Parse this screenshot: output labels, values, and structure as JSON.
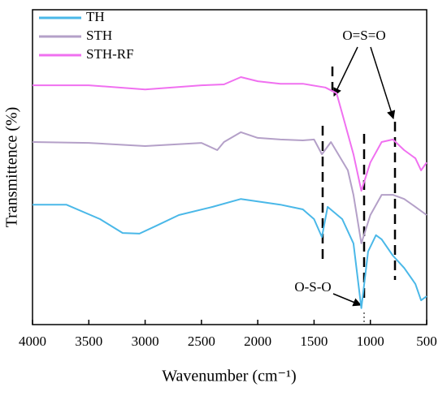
{
  "chart_data": {
    "type": "line",
    "xlabel": "Wavenumber (cm⁻¹)",
    "ylabel": "Transmittence (%)",
    "xlim": [
      4000,
      500
    ],
    "xticks": [
      4000,
      3500,
      3000,
      2500,
      2000,
      1500,
      1000,
      500
    ],
    "ylim": [
      0,
      100
    ],
    "annotations": [
      "O=S=O",
      "O-S-O"
    ],
    "series": [
      {
        "name": "TH",
        "color": "#4ab8e8",
        "x": [
          4000,
          3700,
          3400,
          3200,
          3050,
          2900,
          2700,
          2400,
          2150,
          1800,
          1600,
          1500,
          1430,
          1380,
          1250,
          1150,
          1080,
          1020,
          950,
          900,
          800,
          700,
          600,
          550,
          500
        ],
        "values": [
          38.1,
          38.1,
          33.5,
          29.1,
          28.9,
          31.4,
          34.8,
          37.4,
          39.9,
          38.1,
          36.6,
          33.5,
          27.8,
          37.4,
          33.5,
          25.8,
          5.2,
          23.2,
          28.4,
          27.1,
          21.9,
          18.0,
          12.9,
          7.7,
          9.0
        ]
      },
      {
        "name": "STH",
        "color": "#b4a0c8",
        "x": [
          4000,
          3500,
          3000,
          2500,
          2360,
          2300,
          2150,
          2000,
          1800,
          1600,
          1500,
          1430,
          1350,
          1200,
          1150,
          1080,
          1000,
          900,
          800,
          700,
          600,
          500
        ],
        "values": [
          58.0,
          57.7,
          56.7,
          57.7,
          55.4,
          58.0,
          61.1,
          59.3,
          58.8,
          58.5,
          58.8,
          54.1,
          58.0,
          49.0,
          41.2,
          25.8,
          34.8,
          41.2,
          41.2,
          39.9,
          37.4,
          34.8
        ]
      },
      {
        "name": "STH-RF",
        "color": "#f070f0",
        "x": [
          4000,
          3500,
          3000,
          2500,
          2300,
          2150,
          2000,
          1800,
          1600,
          1400,
          1300,
          1250,
          1150,
          1080,
          1000,
          900,
          800,
          700,
          600,
          550,
          500
        ],
        "values": [
          76,
          76,
          74.7,
          76,
          76.3,
          78.6,
          77.3,
          76.5,
          76.5,
          75.3,
          73.5,
          67,
          54.1,
          42.5,
          51.5,
          58,
          58.8,
          55.4,
          52.8,
          49,
          51.5
        ]
      }
    ]
  }
}
